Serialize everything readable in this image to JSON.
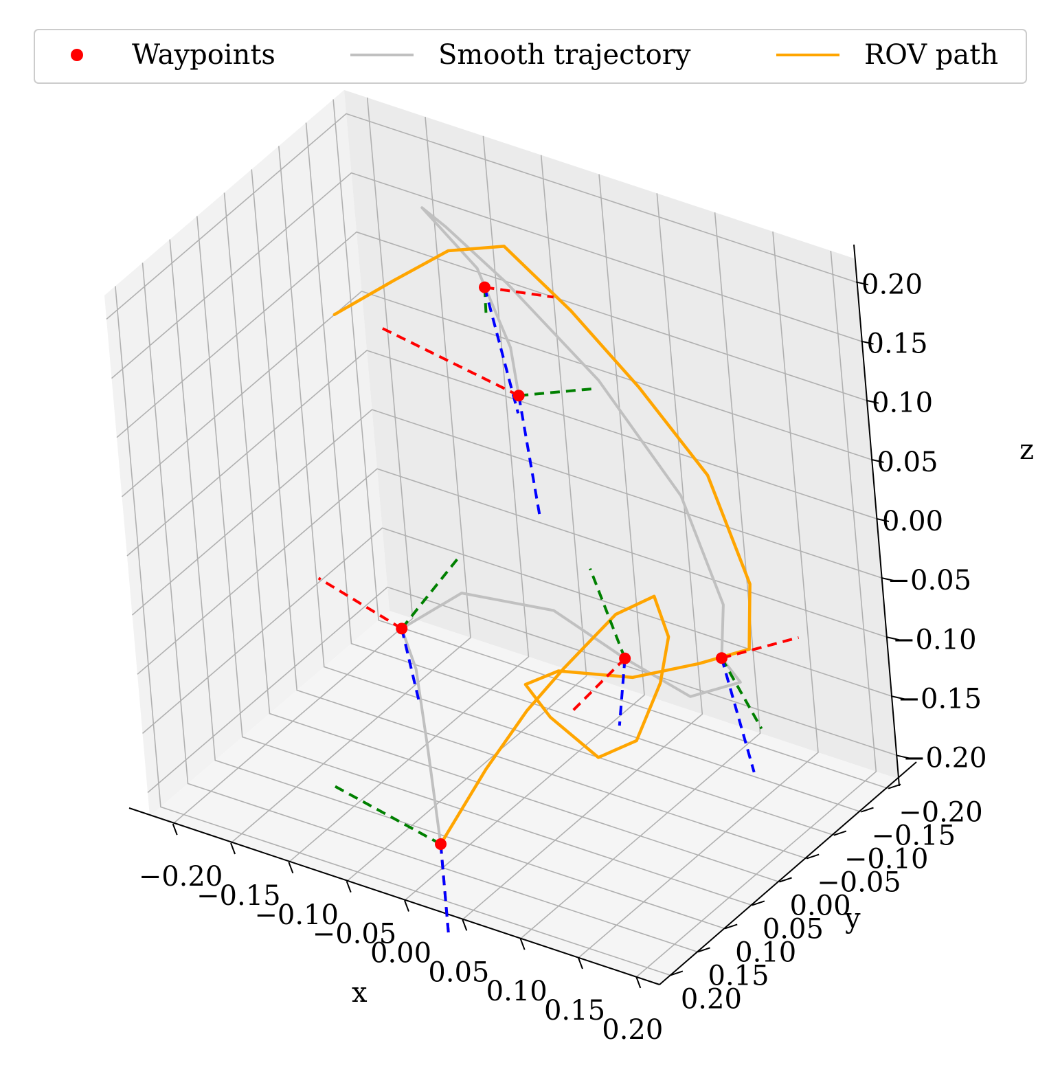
{
  "chart_data": {
    "type": "line3d",
    "title": "",
    "xlabel": "x",
    "ylabel": "y",
    "zlabel": "z",
    "xlim": [
      -0.22,
      0.22
    ],
    "ylim": [
      -0.22,
      0.22
    ],
    "zlim": [
      -0.22,
      0.22
    ],
    "grid": true,
    "legend_position": "top",
    "ticks": {
      "x": [
        "−0.20",
        "−0.15",
        "−0.10",
        "−0.05",
        "0.00",
        "0.05",
        "0.10",
        "0.15",
        "0.20"
      ],
      "y": [
        "−0.20",
        "−0.15",
        "−0.10",
        "−0.05",
        "0.00",
        "0.05",
        "0.10",
        "0.15",
        "0.20"
      ],
      "z": [
        "−0.20",
        "−0.15",
        "−0.10",
        "−0.05",
        "0.00",
        "0.05",
        "0.10",
        "0.15",
        "0.20"
      ]
    },
    "legend": [
      {
        "label": "Waypoints",
        "marker": "dot",
        "color": "#ff0000"
      },
      {
        "label": "Smooth trajectory",
        "marker": "line",
        "color": "#c0c0c0"
      },
      {
        "label": "ROV path",
        "marker": "line",
        "color": "#ffa500"
      }
    ],
    "waypoints": [
      {
        "x": 0.0,
        "y": -0.05,
        "z": 0.1
      },
      {
        "x": -0.1,
        "y": -0.2,
        "z": 0.1
      },
      {
        "x": 0.16,
        "y": -0.05,
        "z": -0.07
      },
      {
        "x": 0.1,
        "y": 0.0,
        "z": -0.07
      },
      {
        "x": -0.07,
        "y": 0.05,
        "z": -0.08
      },
      {
        "x": 0.0,
        "y": 0.15,
        "z": -0.2
      }
    ],
    "series": [
      {
        "name": "Smooth trajectory",
        "color": "#c0c0c0",
        "points": [
          [
            0.0,
            0.15,
            -0.2
          ],
          [
            -0.03,
            0.1,
            -0.15
          ],
          [
            -0.05,
            0.07,
            -0.1
          ],
          [
            -0.07,
            0.05,
            -0.08
          ],
          [
            -0.04,
            0.0,
            -0.06
          ],
          [
            0.03,
            -0.02,
            -0.06
          ],
          [
            0.1,
            0.0,
            -0.07
          ],
          [
            0.15,
            -0.01,
            -0.09
          ],
          [
            0.18,
            -0.04,
            -0.08
          ],
          [
            0.16,
            -0.05,
            -0.07
          ],
          [
            0.15,
            -0.08,
            -0.04
          ],
          [
            0.1,
            -0.12,
            0.02
          ],
          [
            0.02,
            -0.15,
            0.08
          ],
          [
            -0.08,
            -0.2,
            0.11
          ],
          [
            -0.14,
            -0.22,
            0.13
          ],
          [
            -0.16,
            -0.22,
            0.14
          ],
          [
            -0.1,
            -0.19,
            0.12
          ],
          [
            -0.04,
            -0.12,
            0.1
          ],
          [
            0.0,
            -0.05,
            0.1
          ]
        ]
      },
      {
        "name": "ROV path",
        "color": "#ffa500",
        "points": [
          [
            0.0,
            0.15,
            -0.2
          ],
          [
            0.02,
            0.1,
            -0.15
          ],
          [
            0.04,
            0.06,
            -0.11
          ],
          [
            0.06,
            0.03,
            -0.08
          ],
          [
            0.09,
            -0.01,
            -0.04
          ],
          [
            0.11,
            -0.04,
            -0.03
          ],
          [
            0.13,
            -0.02,
            -0.05
          ],
          [
            0.14,
            0.02,
            -0.07
          ],
          [
            0.13,
            0.05,
            -0.11
          ],
          [
            0.1,
            0.06,
            -0.13
          ],
          [
            0.05,
            0.04,
            -0.12
          ],
          [
            0.02,
            0.02,
            -0.11
          ],
          [
            0.04,
            0.0,
            -0.1
          ],
          [
            0.1,
            -0.01,
            -0.09
          ],
          [
            0.15,
            -0.03,
            -0.07
          ],
          [
            0.18,
            -0.06,
            -0.06
          ],
          [
            0.17,
            -0.09,
            -0.02
          ],
          [
            0.12,
            -0.13,
            0.04
          ],
          [
            0.05,
            -0.16,
            0.08
          ],
          [
            -0.02,
            -0.19,
            0.11
          ],
          [
            -0.09,
            -0.22,
            0.13
          ],
          [
            -0.14,
            -0.22,
            0.11
          ],
          [
            -0.18,
            -0.2,
            0.08
          ],
          [
            -0.22,
            -0.17,
            0.05
          ]
        ]
      }
    ],
    "frames": [
      {
        "origin": [
          0.0,
          0.15,
          -0.2
        ],
        "x_axis": [
          0.0,
          0.0,
          -0.075
        ],
        "y_axis": [
          -0.09,
          0.0,
          0.02
        ],
        "z_axis": [
          0.0,
          0.0,
          -0.075
        ]
      },
      {
        "origin": [
          -0.07,
          0.05,
          -0.08
        ],
        "x_axis": [
          -0.07,
          0.0,
          0.02
        ],
        "y_axis": [
          0.03,
          -0.05,
          0.05
        ],
        "z_axis": [
          0.01,
          0.0,
          -0.06
        ]
      },
      {
        "origin": [
          0.1,
          0.0,
          -0.07
        ],
        "x_axis": [
          -0.05,
          0.0,
          -0.06
        ],
        "y_axis": [
          -0.05,
          -0.05,
          0.04
        ],
        "z_axis": [
          -0.01,
          0.0,
          -0.06
        ]
      },
      {
        "origin": [
          0.16,
          -0.05,
          -0.07
        ],
        "x_axis": [
          0.07,
          0.0,
          0.04
        ],
        "y_axis": [
          0.03,
          0.0,
          -0.05
        ],
        "z_axis": [
          0.02,
          0.0,
          -0.09
        ]
      },
      {
        "origin": [
          -0.1,
          -0.2,
          0.1
        ],
        "x_axis": [
          0.05,
          -0.02,
          0.0
        ],
        "y_axis": [
          0.02,
          0.04,
          0.0
        ],
        "z_axis": [
          0.02,
          0.0,
          -0.1
        ]
      },
      {
        "origin": [
          0.0,
          -0.05,
          0.1
        ],
        "x_axis": [
          -0.12,
          0.0,
          0.02
        ],
        "y_axis": [
          0.05,
          -0.03,
          0.01
        ],
        "z_axis": [
          0.02,
          0.02,
          -0.09
        ]
      }
    ]
  }
}
